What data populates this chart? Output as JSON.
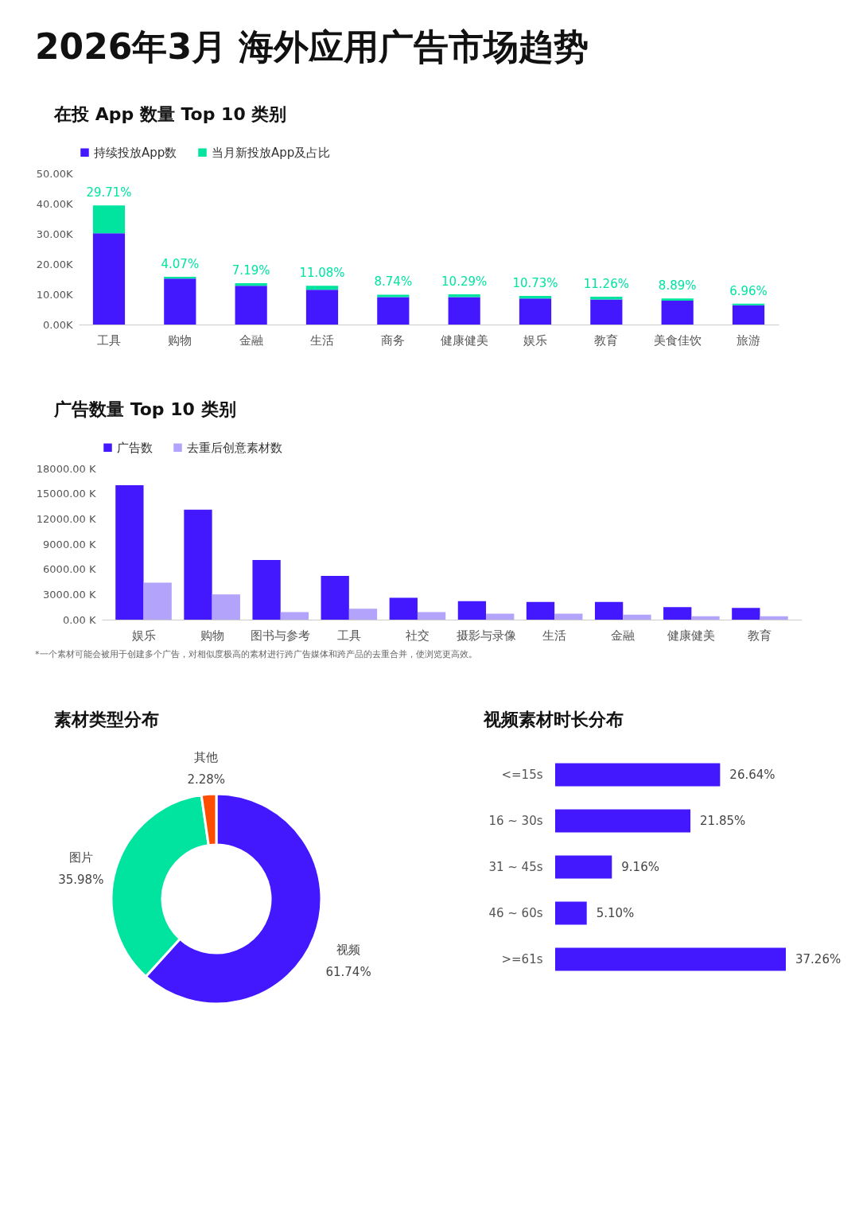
{
  "chart_data": [
    {
      "type": "bar",
      "title": "2026年3月 海外应用广告市场趋势",
      "subtitle": "在投 App 数量 Top 10 类别",
      "stacked": true,
      "legend": "top",
      "categories": [
        "工具",
        "购物",
        "金融",
        "生活",
        "商务",
        "健康健美",
        "娱乐",
        "教育",
        "美食佳饮",
        "旅游"
      ],
      "series": [
        {
          "name": "持续投放App数",
          "color": "#4318ff",
          "values": [
            30.2,
            15.2,
            12.8,
            11.5,
            9.1,
            9.1,
            8.6,
            8.3,
            7.9,
            6.4
          ]
        },
        {
          "name": "当月新投放App及占比",
          "color": "#00e4a0",
          "values": [
            9.2,
            0.6,
            0.9,
            1.3,
            0.8,
            0.9,
            0.9,
            0.9,
            0.7,
            0.5
          ]
        }
      ],
      "annotations": [
        {
          "text": "29.71%",
          "x": "工具",
          "y": 39.4
        },
        {
          "text": "4.07%",
          "x": "购物",
          "y": 15.8
        },
        {
          "text": "7.19%",
          "x": "金融",
          "y": 13.7
        },
        {
          "text": "11.08%",
          "x": "生活",
          "y": 12.8
        },
        {
          "text": "8.74%",
          "x": "商务",
          "y": 9.9
        },
        {
          "text": "10.29%",
          "x": "健康健美",
          "y": 10.0
        },
        {
          "text": "10.73%",
          "x": "娱乐",
          "y": 9.5
        },
        {
          "text": "11.26%",
          "x": "教育",
          "y": 9.2
        },
        {
          "text": "8.89%",
          "x": "美食佳饮",
          "y": 8.6
        },
        {
          "text": "6.96%",
          "x": "旅游",
          "y": 6.9
        }
      ],
      "ylim": [
        0,
        50
      ],
      "yticks": [
        {
          "value": 0,
          "label": "0.00K"
        },
        {
          "value": 10,
          "label": "10.00K"
        },
        {
          "value": 20,
          "label": "20.00K"
        },
        {
          "value": 30,
          "label": "30.00K"
        },
        {
          "value": 40,
          "label": "40.00K"
        },
        {
          "value": 50,
          "label": "50.00K"
        }
      ]
    },
    {
      "type": "bar",
      "subtitle": "广告数量 Top 10 类别",
      "legend": "top",
      "categories": [
        "娱乐",
        "购物",
        "图书与参考",
        "工具",
        "社交",
        "摄影与录像",
        "生活",
        "金融",
        "健康健美",
        "教育"
      ],
      "series": [
        {
          "name": "广告数",
          "color": "#4318ff",
          "values": [
            16000,
            13100,
            7100,
            5200,
            2600,
            2200,
            2100,
            2100,
            1500,
            1400
          ]
        },
        {
          "name": "去重后创意素材数",
          "color": "#b3a3fb",
          "values": [
            4400,
            3000,
            900,
            1300,
            900,
            700,
            700,
            600,
            400,
            400
          ]
        }
      ],
      "ylim": [
        0,
        18000
      ],
      "yticks": [
        {
          "value": 0,
          "label": "0.00 K"
        },
        {
          "value": 3000,
          "label": "3000.00 K"
        },
        {
          "value": 6000,
          "label": "6000.00 K"
        },
        {
          "value": 9000,
          "label": "9000.00 K"
        },
        {
          "value": 12000,
          "label": "12000.00 K"
        },
        {
          "value": 15000,
          "label": "15000.00 K"
        },
        {
          "value": 18000,
          "label": "18000.00 K"
        }
      ],
      "annotations": [
        "*一个素材可能会被用于创建多个广告，对相似度极高的素材进行跨广告媒体和跨产品的去重合并，使浏览更高效。"
      ]
    },
    {
      "type": "donut",
      "subtitle": "素材类型分布",
      "categories": [
        "视频",
        "图片",
        "其他"
      ],
      "values": [
        61.74,
        35.98,
        2.28
      ],
      "colors": [
        "#4318ff",
        "#00e4a0",
        "#ff4d00"
      ],
      "value_labels": [
        "61.74%",
        "35.98%",
        "2.28%"
      ]
    },
    {
      "type": "bar",
      "subtitle": "视频素材时长分布",
      "orientation": "horizontal",
      "color": "#4318ff",
      "categories": [
        "<=15s",
        "16 ~ 30s",
        "31 ~ 45s",
        "46 ~ 60s",
        ">=61s"
      ],
      "values": [
        26.64,
        21.85,
        9.16,
        5.1,
        37.26
      ],
      "value_labels": [
        "26.64%",
        "21.85%",
        "9.16%",
        "5.10%",
        "37.26%"
      ]
    }
  ]
}
